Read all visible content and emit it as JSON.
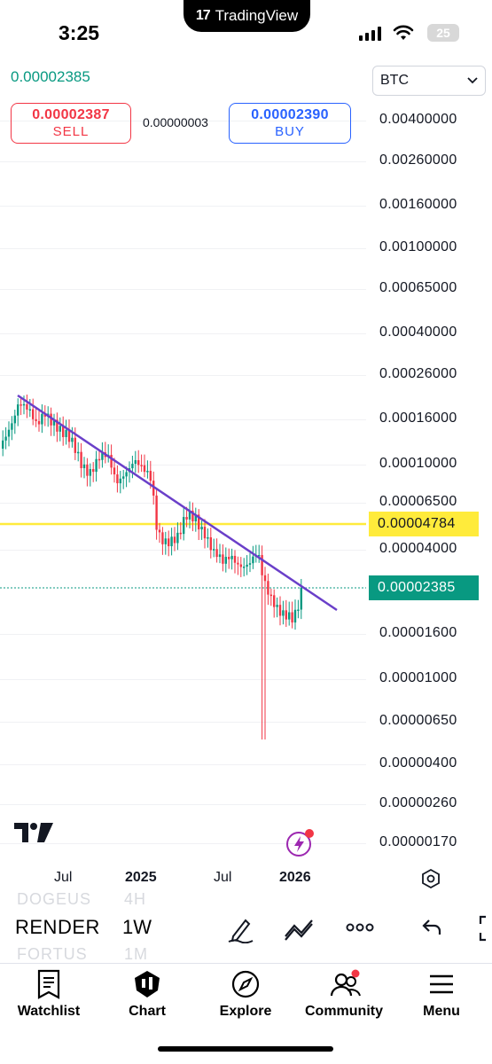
{
  "status": {
    "time": "3:25",
    "island_app": "TradingView",
    "battery": "25"
  },
  "chart": {
    "last_price": "0.00002385",
    "currency": "BTC",
    "sell": {
      "price": "0.00002387",
      "label": "SELL"
    },
    "buy": {
      "price": "0.00002390",
      "label": "BUY"
    },
    "spread": "0.00000003",
    "price_axis": [
      "0.00400000",
      "0.00260000",
      "0.00160000",
      "0.00100000",
      "0.00065000",
      "0.00040000",
      "0.00026000",
      "0.00016000",
      "0.00010000",
      "0.00006500",
      "0.00004000",
      "0.00001600",
      "0.00001000",
      "0.00000650",
      "0.00000400",
      "0.00000260",
      "0.00000170"
    ],
    "horizontal_level_label": "0.00004784",
    "last_price_label": "0.00002385",
    "time_axis": [
      "Jul",
      "2025",
      "Jul",
      "2026"
    ],
    "colors": {
      "up": "#089981",
      "down": "#f23645",
      "trendline": "#6a3fc9",
      "level": "#ffeb3b"
    }
  },
  "toolbar": {
    "symbol": "RENDER",
    "symbol_prev": "DOGEUS",
    "symbol_next": "FORTUS",
    "interval": "1W",
    "interval_prev": "4H",
    "interval_next": "1M"
  },
  "tabs": [
    {
      "label": "Watchlist",
      "icon": "watchlist-icon"
    },
    {
      "label": "Chart",
      "icon": "chart-icon"
    },
    {
      "label": "Explore",
      "icon": "compass-icon"
    },
    {
      "label": "Community",
      "icon": "community-icon"
    },
    {
      "label": "Menu",
      "icon": "menu-icon"
    }
  ]
}
